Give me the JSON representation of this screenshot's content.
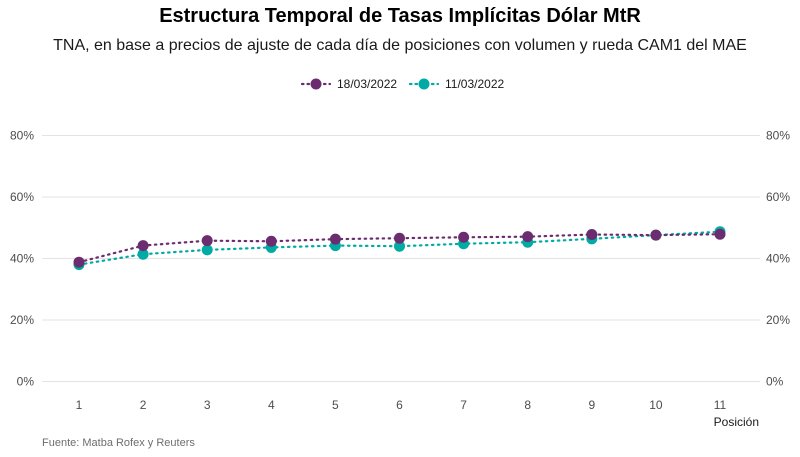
{
  "chart_data": {
    "type": "line",
    "title": "Estructura Temporal de Tasas Implícitas Dólar MtR",
    "subtitle": "TNA, en base a precios de ajuste de cada día de posiciones con volumen y rueda CAM1 del MAE",
    "xlabel": "Posición",
    "ylabel": "",
    "x": [
      1,
      2,
      3,
      4,
      5,
      6,
      7,
      8,
      9,
      10,
      11
    ],
    "ylim": [
      0,
      80
    ],
    "yticks": [
      0,
      20,
      40,
      60,
      80
    ],
    "ytick_labels": [
      "0%",
      "20%",
      "40%",
      "60%",
      "80%"
    ],
    "legend_position": "top",
    "grid": true,
    "series": [
      {
        "name": "18/03/2022",
        "color": "#6b2d6f",
        "values": [
          38.8,
          44.2,
          45.8,
          45.6,
          46.3,
          46.6,
          46.9,
          47.1,
          47.8,
          47.6,
          47.9
        ]
      },
      {
        "name": "11/03/2022",
        "color": "#00aba5",
        "values": [
          38.0,
          41.4,
          42.8,
          43.6,
          44.2,
          44.0,
          44.8,
          45.3,
          46.4,
          47.6,
          48.7
        ]
      }
    ],
    "caption": "Fuente: Matba Rofex y Reuters"
  }
}
